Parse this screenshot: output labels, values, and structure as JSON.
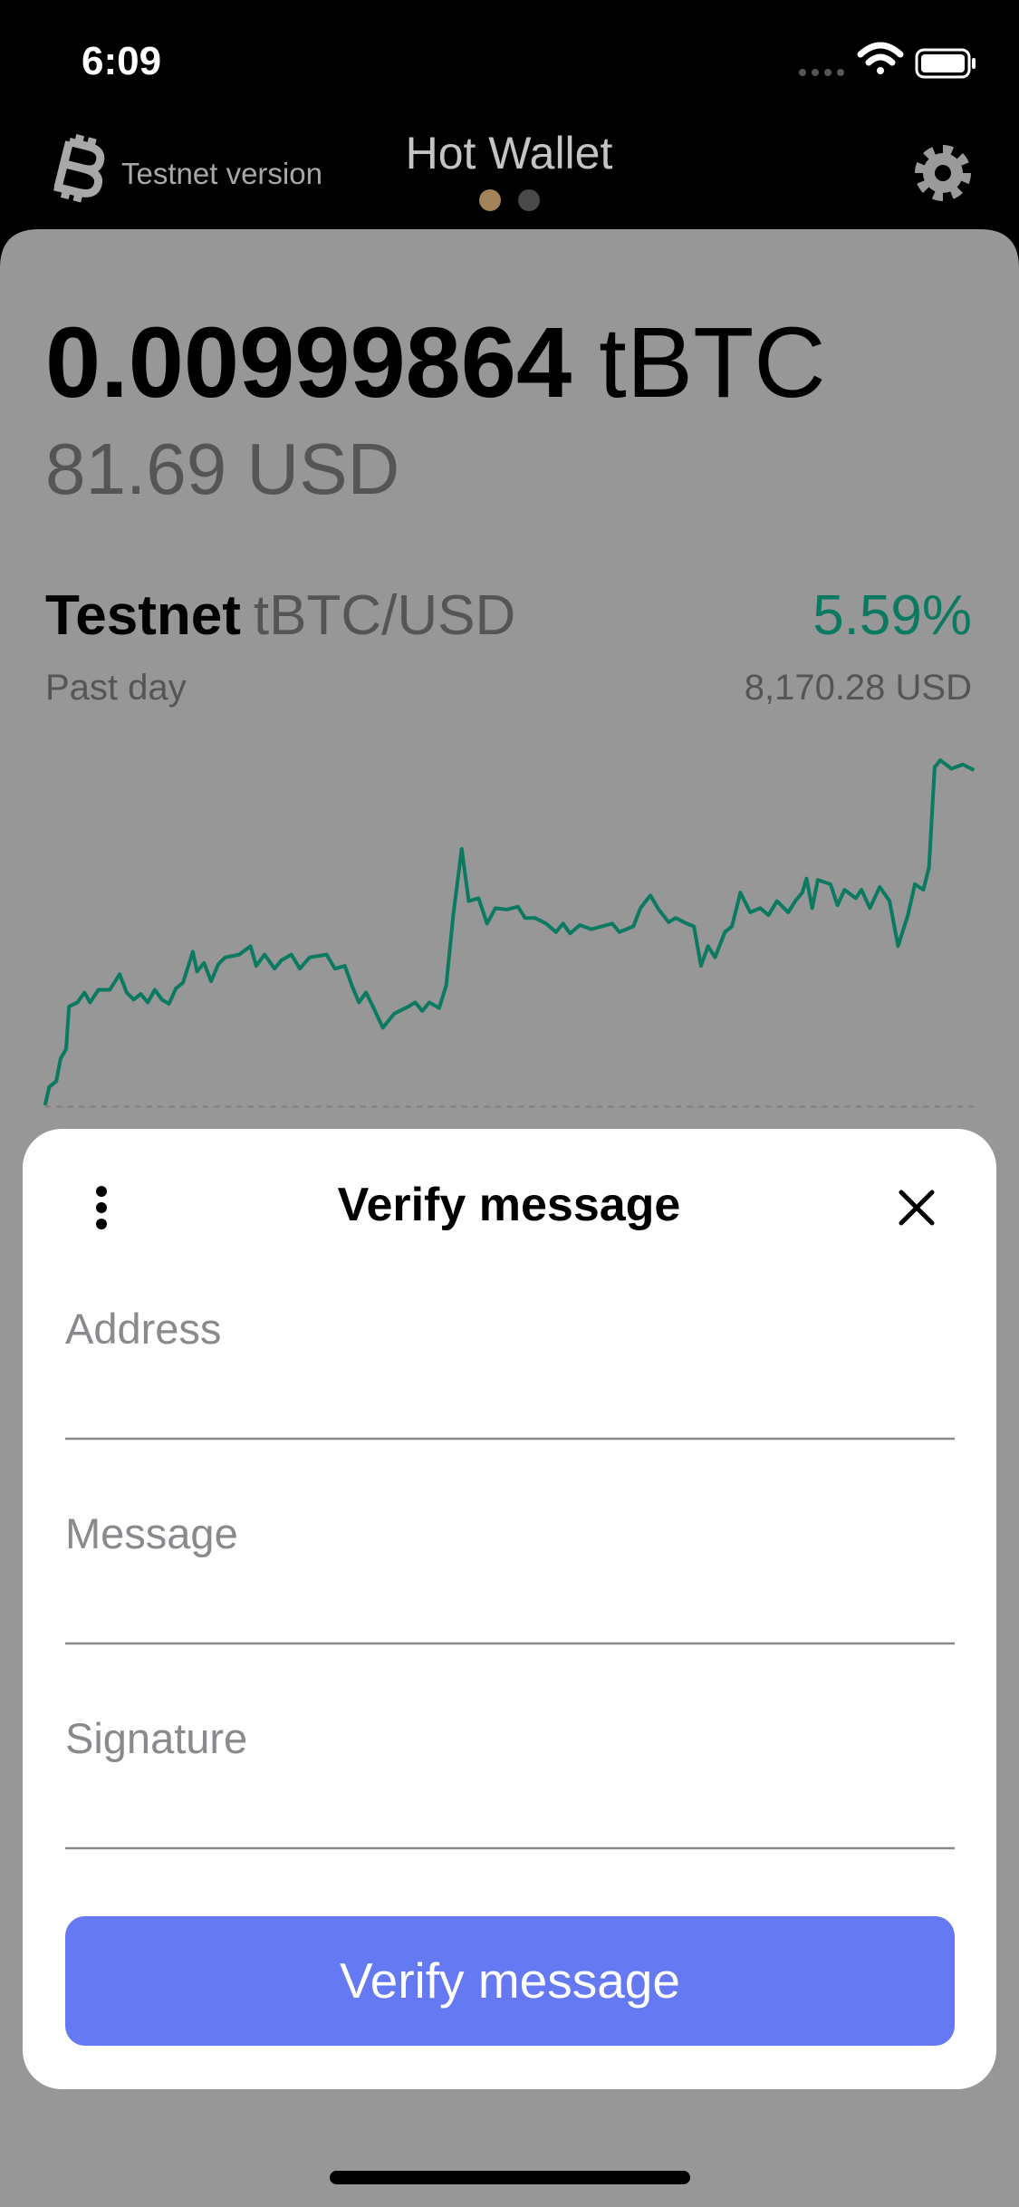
{
  "status_bar": {
    "time": "6:09"
  },
  "header": {
    "network": "Testnet version",
    "title": "Hot Wallet"
  },
  "balance": {
    "amount": "0.00999864",
    "unit": "tBTC",
    "fiat": "81.69 USD"
  },
  "market": {
    "network": "Testnet",
    "pair": "tBTC/USD",
    "change": "5.59%",
    "period": "Past day",
    "price": "8,170.28 USD"
  },
  "dialog": {
    "title": "Verify message",
    "fields": [
      "Address",
      "Message",
      "Signature"
    ],
    "button": "Verify message"
  }
}
